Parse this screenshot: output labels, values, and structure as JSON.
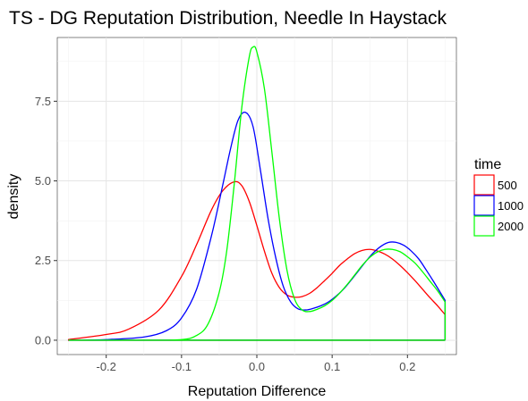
{
  "chart_data": {
    "type": "line",
    "title": "TS - DG Reputation Distribution, Needle In Haystack",
    "xlabel": "Reputation Difference",
    "ylabel": "density",
    "xlim": [
      -0.265,
      0.265
    ],
    "ylim": [
      -0.45,
      9.5
    ],
    "xticks": [
      -0.2,
      -0.1,
      0.0,
      0.1,
      0.2
    ],
    "xtick_labels": [
      "-0.2",
      "-0.1",
      "0.0",
      "0.1",
      "0.2"
    ],
    "yticks": [
      0.0,
      2.5,
      5.0,
      7.5
    ],
    "ytick_labels": [
      "0.0",
      "2.5",
      "5.0",
      "7.5"
    ],
    "grid": true,
    "legend": {
      "title": "time",
      "placement": "right"
    },
    "series": [
      {
        "name": "500",
        "color": "#ff0000",
        "x": [
          -0.25,
          -0.2,
          -0.17,
          -0.13,
          -0.1,
          -0.08,
          -0.06,
          -0.045,
          -0.03,
          -0.02,
          -0.01,
          0.0,
          0.01,
          0.02,
          0.03,
          0.04,
          0.05,
          0.06,
          0.07,
          0.08,
          0.09,
          0.1,
          0.11,
          0.12,
          0.13,
          0.14,
          0.15,
          0.16,
          0.17,
          0.18,
          0.19,
          0.2,
          0.21,
          0.22,
          0.23,
          0.24,
          0.25
        ],
        "y": [
          0.02,
          0.18,
          0.35,
          0.95,
          2.0,
          3.0,
          4.1,
          4.7,
          4.97,
          4.85,
          4.35,
          3.6,
          2.8,
          2.1,
          1.65,
          1.42,
          1.35,
          1.37,
          1.47,
          1.65,
          1.87,
          2.1,
          2.35,
          2.55,
          2.72,
          2.82,
          2.85,
          2.8,
          2.7,
          2.55,
          2.35,
          2.12,
          1.87,
          1.6,
          1.33,
          1.08,
          0.8
        ]
      },
      {
        "name": "1000",
        "color": "#0000ff",
        "x": [
          -0.25,
          -0.2,
          -0.15,
          -0.12,
          -0.1,
          -0.08,
          -0.06,
          -0.045,
          -0.035,
          -0.025,
          -0.015,
          -0.005,
          0.005,
          0.015,
          0.025,
          0.035,
          0.045,
          0.055,
          0.065,
          0.075,
          0.085,
          0.095,
          0.105,
          0.115,
          0.125,
          0.135,
          0.145,
          0.155,
          0.165,
          0.175,
          0.185,
          0.195,
          0.205,
          0.215,
          0.225,
          0.235,
          0.25
        ],
        "y": [
          0.0,
          0.02,
          0.1,
          0.3,
          0.7,
          1.6,
          3.3,
          4.9,
          6.0,
          6.9,
          7.15,
          6.7,
          5.3,
          3.8,
          2.6,
          1.7,
          1.2,
          0.98,
          0.95,
          1.0,
          1.08,
          1.2,
          1.38,
          1.6,
          1.88,
          2.18,
          2.48,
          2.75,
          2.95,
          3.07,
          3.07,
          2.98,
          2.8,
          2.55,
          2.2,
          1.83,
          1.25
        ]
      },
      {
        "name": "2000",
        "color": "#00ff00",
        "x": [
          -0.25,
          -0.15,
          -0.1,
          -0.08,
          -0.065,
          -0.05,
          -0.04,
          -0.03,
          -0.02,
          -0.01,
          -0.005,
          0.0,
          0.01,
          0.02,
          0.03,
          0.04,
          0.05,
          0.06,
          0.07,
          0.08,
          0.09,
          0.1,
          0.11,
          0.12,
          0.13,
          0.14,
          0.15,
          0.16,
          0.17,
          0.18,
          0.19,
          0.2,
          0.21,
          0.22,
          0.23,
          0.24,
          0.25
        ],
        "y": [
          0.0,
          0.0,
          0.02,
          0.15,
          0.5,
          1.5,
          2.8,
          4.9,
          7.3,
          8.9,
          9.2,
          9.05,
          7.9,
          5.9,
          3.8,
          2.2,
          1.3,
          0.95,
          0.9,
          0.97,
          1.08,
          1.25,
          1.48,
          1.75,
          2.05,
          2.35,
          2.6,
          2.77,
          2.85,
          2.85,
          2.78,
          2.62,
          2.42,
          2.15,
          1.85,
          1.55,
          1.2
        ]
      }
    ]
  }
}
